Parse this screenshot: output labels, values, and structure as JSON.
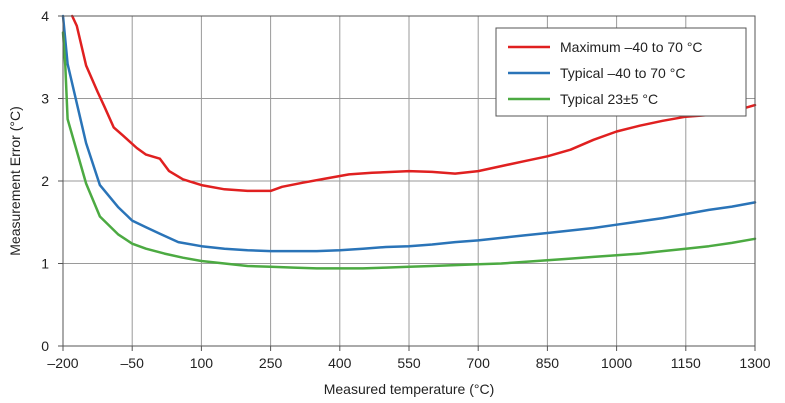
{
  "chart_data": {
    "type": "line",
    "xlabel": "Measured temperature (°C)",
    "ylabel": "Measurement Error (°C)",
    "xlim": [
      -200,
      1300
    ],
    "ylim": [
      0,
      4
    ],
    "xticks": [
      -200,
      -50,
      100,
      250,
      400,
      550,
      700,
      850,
      1000,
      1150,
      1300
    ],
    "xtick_labels": [
      "–200",
      "–50",
      "100",
      "250",
      "400",
      "550",
      "700",
      "850",
      "1000",
      "1150",
      "1300"
    ],
    "yticks": [
      0,
      1,
      2,
      3,
      4
    ],
    "ytick_labels": [
      "0",
      "1",
      "2",
      "3",
      "4"
    ],
    "grid": true,
    "legend_position": "top-right",
    "series": [
      {
        "name": "Maximum –40 to 70 °C",
        "color": "#e02020",
        "x": [
          -180,
          -170,
          -150,
          -125,
          -110,
          -90,
          -70,
          -40,
          -20,
          10,
          30,
          60,
          100,
          150,
          200,
          250,
          275,
          320,
          370,
          420,
          470,
          550,
          600,
          650,
          700,
          750,
          800,
          850,
          900,
          950,
          1000,
          1050,
          1100,
          1150,
          1200,
          1250,
          1300
        ],
        "y": [
          4.0,
          3.88,
          3.4,
          3.08,
          2.9,
          2.65,
          2.55,
          2.4,
          2.32,
          2.27,
          2.12,
          2.02,
          1.95,
          1.9,
          1.88,
          1.88,
          1.93,
          1.98,
          2.03,
          2.08,
          2.1,
          2.12,
          2.11,
          2.09,
          2.12,
          2.18,
          2.24,
          2.3,
          2.38,
          2.5,
          2.6,
          2.67,
          2.73,
          2.78,
          2.8,
          2.84,
          2.92
        ],
        "x_note": ""
      },
      {
        "name": "Typical –40 to 70 °C",
        "color": "#2a74b8",
        "x": [
          -200,
          -190,
          -150,
          -120,
          -80,
          -50,
          -20,
          10,
          50,
          100,
          150,
          200,
          250,
          300,
          350,
          400,
          450,
          500,
          550,
          600,
          650,
          700,
          750,
          800,
          850,
          900,
          950,
          1000,
          1050,
          1100,
          1150,
          1200,
          1250,
          1300
        ],
        "y": [
          4.0,
          3.42,
          2.46,
          1.95,
          1.68,
          1.52,
          1.44,
          1.36,
          1.26,
          1.21,
          1.18,
          1.16,
          1.15,
          1.15,
          1.15,
          1.16,
          1.18,
          1.2,
          1.21,
          1.23,
          1.26,
          1.28,
          1.31,
          1.34,
          1.37,
          1.4,
          1.43,
          1.47,
          1.51,
          1.55,
          1.6,
          1.65,
          1.69,
          1.74
        ]
      },
      {
        "name": "Typical 23±5 °C",
        "color": "#4caa42",
        "x": [
          -200,
          -195,
          -190,
          -150,
          -120,
          -80,
          -50,
          -20,
          20,
          60,
          100,
          150,
          200,
          250,
          300,
          350,
          400,
          450,
          500,
          550,
          600,
          650,
          700,
          750,
          800,
          850,
          900,
          950,
          1000,
          1050,
          1100,
          1150,
          1200,
          1250,
          1300
        ],
        "y": [
          3.8,
          3.4,
          2.75,
          1.97,
          1.57,
          1.35,
          1.24,
          1.18,
          1.12,
          1.07,
          1.03,
          1.0,
          0.97,
          0.96,
          0.95,
          0.94,
          0.94,
          0.94,
          0.95,
          0.96,
          0.97,
          0.98,
          0.99,
          1.0,
          1.02,
          1.04,
          1.06,
          1.08,
          1.1,
          1.12,
          1.15,
          1.18,
          1.21,
          1.25,
          1.3
        ]
      }
    ]
  }
}
